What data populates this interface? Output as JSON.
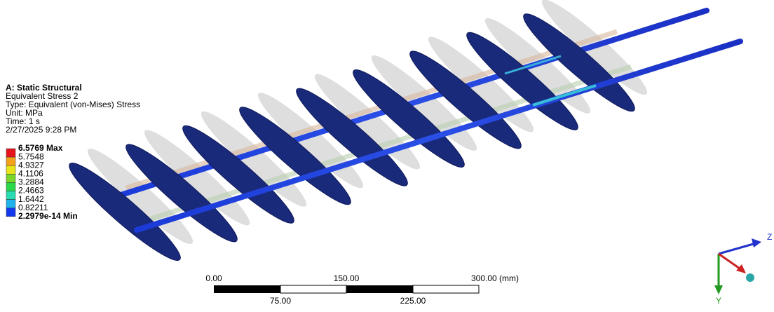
{
  "header": {
    "title": "A: Static Structural",
    "lines": [
      "Equivalent Stress 2",
      "Type: Equivalent (von-Mises) Stress",
      "Unit: MPa",
      "Time: 1 s",
      "2/27/2025 9:28 PM"
    ]
  },
  "legend": {
    "labels": [
      "6.5769 Max",
      "5.7548",
      "4.9327",
      "4.1106",
      "3.2884",
      "2.4663",
      "1.6442",
      "0.82211",
      "2.2979e-14 Min"
    ]
  },
  "scale_bar": {
    "top_labels": [
      "0.00",
      "150.00",
      "300.00 (mm)"
    ],
    "bottom_labels": [
      "75.00",
      "225.00"
    ]
  },
  "triad": {
    "labels": [
      "Z",
      "Y"
    ]
  }
}
